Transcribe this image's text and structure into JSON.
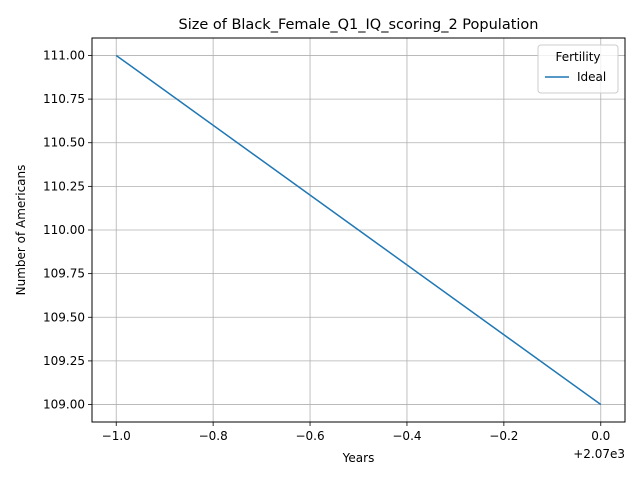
{
  "chart_data": {
    "type": "line",
    "title": "Size of Black_Female_Q1_IQ_scoring_2 Population",
    "xlabel": "Years",
    "ylabel": "Number of Americans",
    "x_offset_label": "+2.07e3",
    "xlim": [
      -1.05,
      0.05
    ],
    "ylim": [
      108.9,
      111.1
    ],
    "x_ticks": [
      -1.0,
      -0.8,
      -0.6,
      -0.4,
      -0.2,
      0.0
    ],
    "x_tick_labels": [
      "−1.0",
      "−0.8",
      "−0.6",
      "−0.4",
      "−0.2",
      "0.0"
    ],
    "y_ticks": [
      109.0,
      109.25,
      109.5,
      109.75,
      110.0,
      110.25,
      110.5,
      110.75,
      111.0
    ],
    "y_tick_labels": [
      "109.00",
      "109.25",
      "109.50",
      "109.75",
      "110.00",
      "110.25",
      "110.50",
      "110.75",
      "111.00"
    ],
    "grid": true,
    "legend": {
      "title": "Fertility",
      "placement": "top-right"
    },
    "series": [
      {
        "name": "Ideal",
        "color": "#1f77b4",
        "x": [
          -1.0,
          0.0
        ],
        "y": [
          111.0,
          109.0
        ]
      }
    ]
  }
}
